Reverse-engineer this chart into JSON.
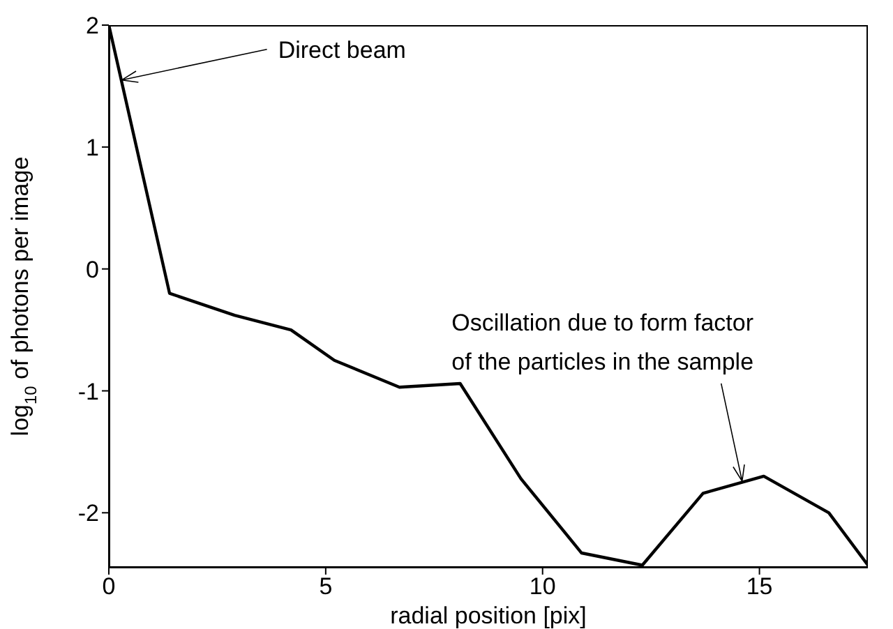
{
  "chart_data": {
    "type": "line",
    "xlabel": "radial position [pix]",
    "ylabel": "log$_{10}$ of photons per image",
    "x": [
      0,
      1.4,
      2.9,
      4.2,
      5.2,
      6.7,
      8.1,
      9.5,
      10.9,
      12.3,
      13.7,
      15.1,
      16.6,
      17.5
    ],
    "series": [
      {
        "color": "#000000",
        "values": [
          2,
          -0.2,
          -0.38,
          -0.5,
          -0.75,
          -0.97,
          -0.94,
          -1.72,
          -2.33,
          -2.43,
          -1.84,
          -1.7,
          -2.0,
          -2.43
        ]
      }
    ],
    "xlim": [
      0,
      17.5
    ],
    "xticks": [
      0,
      5,
      10,
      15
    ],
    "ylim": [
      -2.45,
      2
    ],
    "yticks": [
      -2,
      -1,
      0,
      1,
      2
    ],
    "grid": false,
    "legend": false,
    "marker": "none",
    "line_style": "solid",
    "annotations": [
      {
        "text": "Direct beam",
        "x": 0.3,
        "y": 1.55
      },
      "Oscillation due to form factor",
      {
        "text": "of the particles in the sample",
        "x": 14.6,
        "y": -1.74
      }
    ]
  }
}
